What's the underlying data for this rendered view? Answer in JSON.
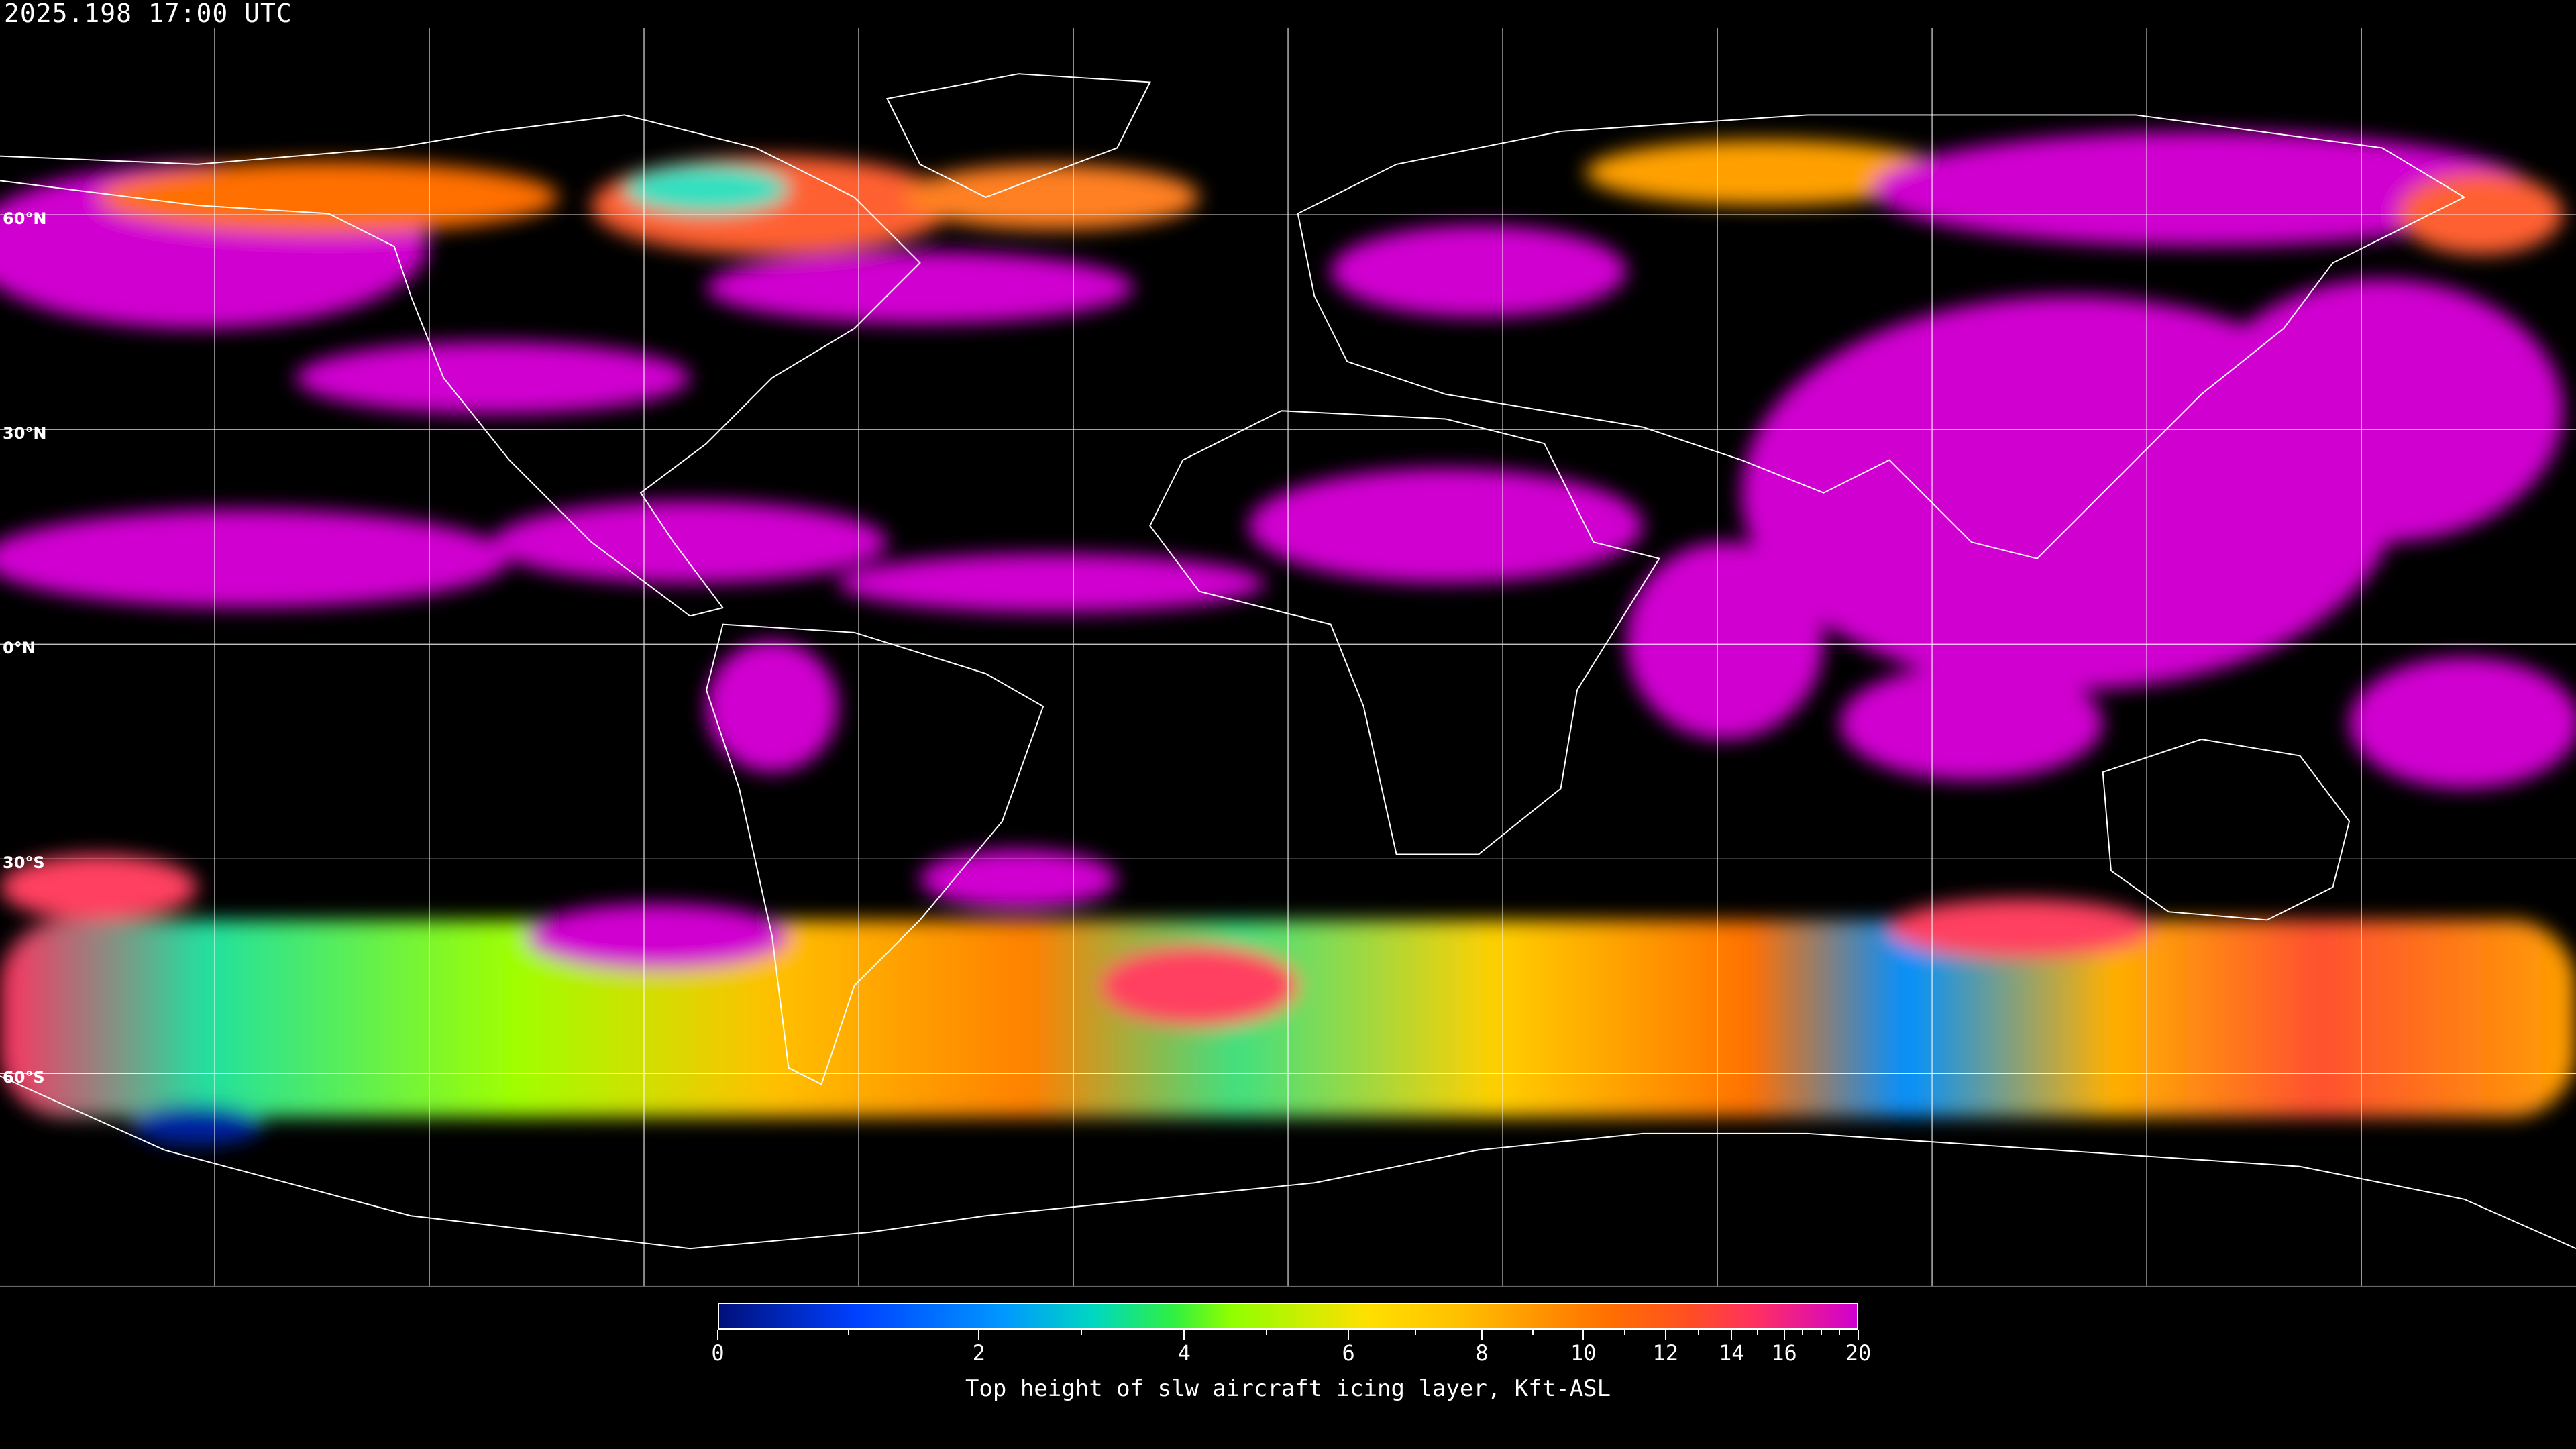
{
  "header": {
    "timestamp": "2025.198 17:00 UTC"
  },
  "map": {
    "projection": "equirectangular",
    "grid_spacing_deg": 30,
    "lat_labels": [
      "60°N",
      "30°N",
      "0°N",
      "30°S",
      "60°S"
    ],
    "background_color": "#000000",
    "coastline_color": "#ffffff",
    "gridline_color": "#ffffff"
  },
  "colorbar": {
    "title": "Top height of slw aircraft icing layer, Kft-ASL",
    "min": 0,
    "max": 20,
    "tick_labels": [
      "0",
      "2",
      "4",
      "6",
      "8",
      "10",
      "12",
      "14",
      "16",
      "20"
    ],
    "low_color": "#00107a",
    "high_color": "#d000d0"
  }
}
